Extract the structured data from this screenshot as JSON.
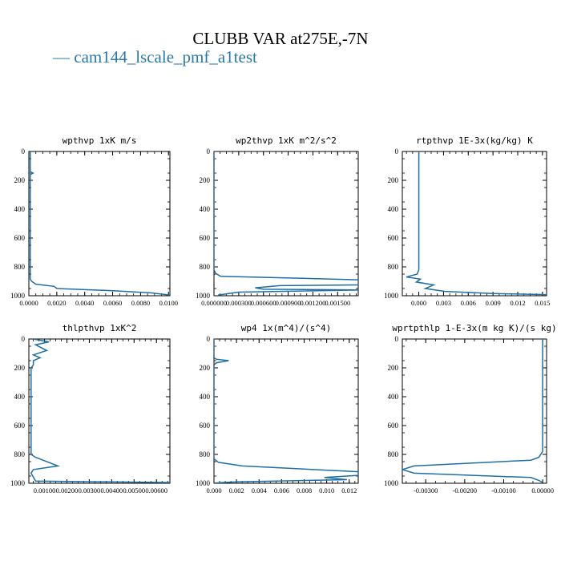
{
  "figure": {
    "title": "CLUBB VAR at275E,-7N",
    "legend_label": "— cam144_lscale_pmf_a1test",
    "legend_color": "#2a78a8",
    "line_color": "#1f6fa5"
  },
  "chart_data": [
    {
      "type": "line",
      "title": "wpthvp   1xK m/s",
      "xlim": [
        0,
        0.0101
      ],
      "ylim": [
        1000,
        0
      ],
      "x_ticks": [
        "0.0000",
        "0.0020",
        "0.0040",
        "0.0060",
        "0.0080",
        "0.0100"
      ],
      "x_tick_values": [
        0,
        0.002,
        0.004,
        0.006,
        0.008,
        0.01
      ],
      "y_ticks": [
        "0",
        "200",
        "400",
        "600",
        "800",
        "1000"
      ],
      "y_tick_values": [
        0,
        200,
        400,
        600,
        800,
        1000
      ],
      "series": [
        {
          "x": [
            0.0001,
            0.0001,
            0.0003,
            0.0001,
            0.0001,
            0.0001,
            0.0001,
            0.0001,
            0.0001,
            0.0001,
            0.0002,
            0.0005,
            0.0018,
            0.002,
            0.006,
            0.0087,
            0.0101
          ],
          "y": [
            0,
            140,
            150,
            160,
            300,
            500,
            700,
            850,
            870,
            885,
            900,
            920,
            935,
            950,
            965,
            980,
            995
          ]
        }
      ]
    },
    {
      "type": "line",
      "title": "wp2thvp   1xK m^2/s^2",
      "xlim": [
        0,
        0.00175
      ],
      "ylim": [
        1000,
        0
      ],
      "x_ticks": [
        "0.000000",
        "0.000300",
        "0.000600",
        "0.000900",
        "0.001200",
        "0.001500"
      ],
      "x_tick_values": [
        0,
        0.0003,
        0.0006,
        0.0009,
        0.0012,
        0.0015
      ],
      "y_ticks": [
        "0",
        "200",
        "400",
        "600",
        "800",
        "1000"
      ],
      "y_tick_values": [
        0,
        200,
        400,
        600,
        800,
        1000
      ],
      "series": [
        {
          "x": [
            0,
            0,
            0,
            2e-05,
            8e-05,
            0.0018,
            0.0018,
            0.0008,
            0.0005,
            0.0006,
            0.0018,
            0.0003,
            5e-05
          ],
          "y": [
            0,
            300,
            820,
            845,
            865,
            890,
            925,
            930,
            945,
            955,
            960,
            975,
            995
          ]
        }
      ]
    },
    {
      "type": "line",
      "title": "rtpthvp   1E-3x(kg/kg) K",
      "xlim": [
        -0.002,
        0.0155
      ],
      "ylim": [
        1000,
        0
      ],
      "x_ticks": [
        "0.000",
        "0.003",
        "0.006",
        "0.009",
        "0.012",
        "0.015"
      ],
      "x_tick_values": [
        0,
        0.003,
        0.006,
        0.009,
        0.012,
        0.015
      ],
      "y_ticks": [
        "0",
        "200",
        "400",
        "600",
        "800",
        "1000"
      ],
      "y_tick_values": [
        0,
        200,
        400,
        600,
        800,
        1000
      ],
      "series": [
        {
          "x": [
            0,
            0,
            0,
            -0.0002,
            -0.0015,
            0.0002,
            -0.0003,
            0.0018,
            0.0008,
            0.0032,
            0.009,
            0.0155
          ],
          "y": [
            0,
            400,
            820,
            850,
            870,
            885,
            905,
            925,
            950,
            970,
            985,
            992
          ]
        }
      ]
    },
    {
      "type": "line",
      "title": "thlpthvp   1xK^2",
      "xlim": [
        0.0003,
        0.0066
      ],
      "ylim": [
        1000,
        0
      ],
      "x_ticks": [
        "0.00100",
        "0.00200",
        "0.00300",
        "0.00400",
        "0.00500",
        "0.00600"
      ],
      "x_tick_values": [
        0.001,
        0.002,
        0.003,
        0.004,
        0.005,
        0.006
      ],
      "y_ticks": [
        "0",
        "200",
        "400",
        "600",
        "800",
        "1000"
      ],
      "y_tick_values": [
        0,
        200,
        400,
        600,
        800,
        1000
      ],
      "series": [
        {
          "x": [
            0.0005,
            0.0012,
            0.0006,
            0.0011,
            0.0005,
            0.0008,
            0.0005,
            0.0005,
            0.0004,
            0.0004,
            0.0006,
            0.0016,
            0.0005,
            0.0004,
            0.0006,
            0.0066
          ],
          "y": [
            0,
            20,
            40,
            80,
            110,
            130,
            150,
            180,
            200,
            800,
            820,
            880,
            905,
            930,
            985,
            995
          ]
        }
      ]
    },
    {
      "type": "line",
      "title": "wp4   1x(m^4)/(s^4)",
      "xlim": [
        0,
        0.0128
      ],
      "ylim": [
        1000,
        0
      ],
      "x_ticks": [
        "0.000",
        "0.002",
        "0.004",
        "0.006",
        "0.008",
        "0.010",
        "0.012"
      ],
      "x_tick_values": [
        0,
        0.002,
        0.004,
        0.006,
        0.008,
        0.01,
        0.012
      ],
      "y_ticks": [
        "0",
        "200",
        "400",
        "600",
        "800",
        "1000"
      ],
      "y_tick_values": [
        0,
        200,
        400,
        600,
        800,
        1000
      ],
      "series": [
        {
          "x": [
            0,
            0,
            0.0002,
            0.0013,
            0.0002,
            0,
            0,
            0.0004,
            0.0025,
            0.0128,
            0.0128,
            0.0098,
            0.0118,
            0.002,
            0.0001
          ],
          "y": [
            0,
            130,
            140,
            150,
            165,
            180,
            830,
            855,
            880,
            920,
            945,
            960,
            975,
            990,
            998
          ]
        }
      ]
    },
    {
      "type": "line",
      "title": "wprtpthlp   1-E-3x(m kg K)/(s kg)",
      "xlim": [
        -0.0036,
        0.0001
      ],
      "ylim": [
        1000,
        0
      ],
      "x_ticks": [
        "-0.00300",
        "-0.00200",
        "-0.00100",
        "0.00000"
      ],
      "x_tick_values": [
        -0.003,
        -0.002,
        -0.001,
        0
      ],
      "y_ticks": [
        "0",
        "200",
        "400",
        "600",
        "800",
        "1000"
      ],
      "y_tick_values": [
        0,
        200,
        400,
        600,
        800,
        1000
      ],
      "series": [
        {
          "x": [
            0,
            0,
            -0.0001,
            -0.0003,
            -0.0033,
            -0.0036,
            -0.0033,
            -0.0003,
            -0.0001,
            0
          ],
          "y": [
            0,
            780,
            820,
            840,
            880,
            905,
            930,
            960,
            980,
            995
          ]
        }
      ]
    }
  ]
}
